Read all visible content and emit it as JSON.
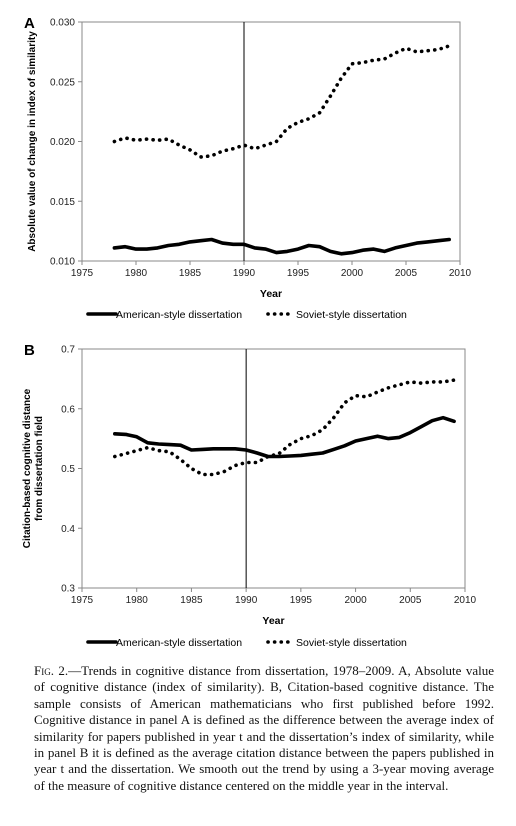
{
  "caption": {
    "label": "Fig. 2.",
    "text": "—Trends in cognitive distance from dissertation, 1978–2009. A, Absolute value of cognitive distance (index of similarity). B, Citation-based cognitive distance. The sample consists of American mathematicians who first published before 1992. Cognitive distance in panel A is defined as the difference between the average index of similarity for papers published in year t and the dissertation’s index of similarity, while in panel B it is defined as the average citation distance between the papers published in year t and the dissertation. We smooth out the trend by using a 3-year moving average of the measure of cognitive distance centered on the middle year in the interval."
  },
  "chart_data": [
    {
      "type": "line",
      "panel_label": "A",
      "ylabel": "Absolute value of change in index of similarity",
      "xlabel": "Year",
      "xlim": [
        1975,
        2010
      ],
      "ylim": [
        0.01,
        0.03
      ],
      "xticks": [
        "1975",
        "1980",
        "1985",
        "1990",
        "1995",
        "2000",
        "2005",
        "2010"
      ],
      "yticks": [
        "0.010",
        "0.015",
        "0.020",
        "0.025",
        "0.030"
      ],
      "vline": 1990,
      "grid": false,
      "legend_position": "bottom",
      "x": [
        1978,
        1979,
        1980,
        1981,
        1982,
        1983,
        1984,
        1985,
        1986,
        1987,
        1988,
        1989,
        1990,
        1991,
        1992,
        1993,
        1994,
        1995,
        1996,
        1997,
        1998,
        1999,
        2000,
        2001,
        2002,
        2003,
        2004,
        2005,
        2006,
        2007,
        2008,
        2009
      ],
      "series": [
        {
          "name": "American-style dissertation",
          "style": "solid",
          "values": [
            0.0111,
            0.0112,
            0.011,
            0.011,
            0.0111,
            0.0113,
            0.0114,
            0.0116,
            0.0117,
            0.0118,
            0.0115,
            0.0114,
            0.0114,
            0.0111,
            0.011,
            0.0107,
            0.0108,
            0.011,
            0.0113,
            0.0112,
            0.0108,
            0.0106,
            0.0107,
            0.0109,
            0.011,
            0.0108,
            0.0111,
            0.0113,
            0.0115,
            0.0116,
            0.0117,
            0.0118
          ]
        },
        {
          "name": "Soviet-style dissertation",
          "style": "dotted",
          "values": [
            0.02,
            0.0203,
            0.0201,
            0.0202,
            0.0201,
            0.0202,
            0.0197,
            0.0193,
            0.0187,
            0.0188,
            0.0192,
            0.0194,
            0.0197,
            0.0194,
            0.0197,
            0.02,
            0.0211,
            0.0216,
            0.0219,
            0.0224,
            0.0238,
            0.0253,
            0.0265,
            0.0266,
            0.0268,
            0.0269,
            0.0274,
            0.0278,
            0.0275,
            0.0276,
            0.0277,
            0.028
          ]
        }
      ]
    },
    {
      "type": "line",
      "panel_label": "B",
      "ylabel": "Citation-based cognitive distance from dissertation field",
      "xlabel": "Year",
      "xlim": [
        1975,
        2010
      ],
      "ylim": [
        0.3,
        0.7
      ],
      "xticks": [
        "1975",
        "1980",
        "1985",
        "1990",
        "1995",
        "2000",
        "2005",
        "2010"
      ],
      "yticks": [
        "0.3",
        "0.4",
        "0.5",
        "0.6",
        "0.7"
      ],
      "vline": 1990,
      "grid": false,
      "legend_position": "bottom",
      "x": [
        1978,
        1979,
        1980,
        1981,
        1982,
        1983,
        1984,
        1985,
        1986,
        1987,
        1988,
        1989,
        1990,
        1991,
        1992,
        1993,
        1994,
        1995,
        1996,
        1997,
        1998,
        1999,
        2000,
        2001,
        2002,
        2003,
        2004,
        2005,
        2006,
        2007,
        2008,
        2009
      ],
      "series": [
        {
          "name": "American-style dissertation",
          "style": "solid",
          "values": [
            0.558,
            0.557,
            0.553,
            0.543,
            0.541,
            0.54,
            0.539,
            0.531,
            0.532,
            0.533,
            0.533,
            0.533,
            0.531,
            0.526,
            0.52,
            0.52,
            0.521,
            0.522,
            0.524,
            0.526,
            0.532,
            0.538,
            0.546,
            0.55,
            0.554,
            0.55,
            0.552,
            0.56,
            0.57,
            0.58,
            0.585,
            0.579
          ]
        },
        {
          "name": "Soviet-style dissertation",
          "style": "dotted",
          "values": [
            0.52,
            0.525,
            0.53,
            0.535,
            0.53,
            0.528,
            0.515,
            0.5,
            0.49,
            0.49,
            0.495,
            0.505,
            0.51,
            0.51,
            0.52,
            0.525,
            0.54,
            0.55,
            0.555,
            0.565,
            0.585,
            0.61,
            0.622,
            0.62,
            0.628,
            0.635,
            0.64,
            0.645,
            0.643,
            0.645,
            0.645,
            0.648
          ]
        }
      ]
    }
  ]
}
